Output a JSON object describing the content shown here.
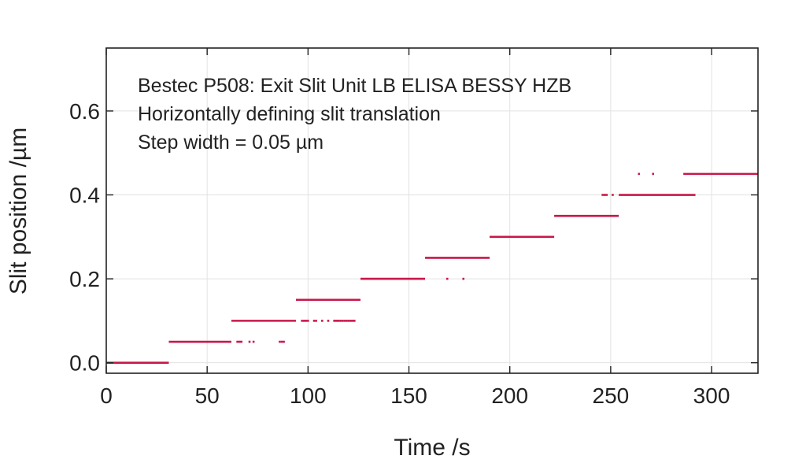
{
  "chart_data": {
    "type": "scatter",
    "title": "",
    "xlabel": "Time /s",
    "ylabel": "Slit position /µm",
    "xlim": [
      0,
      323
    ],
    "ylim": [
      -0.025,
      0.75
    ],
    "xticks": [
      0,
      50,
      100,
      150,
      200,
      250,
      300
    ],
    "yticks": [
      0.0,
      0.2,
      0.4,
      0.6
    ],
    "ytick_labels": [
      "0.0",
      "0.2",
      "0.4",
      "0.6"
    ],
    "grid": true,
    "series_color": "#c8174a",
    "annotations": [
      "Bestec P508: Exit Slit Unit LB ELISA BESSY HZB",
      "Horizontally defining slit translation",
      "Step width = 0.05 µm"
    ],
    "segments": [
      {
        "y": 0.0,
        "x_start": 0,
        "x_end": 31
      },
      {
        "y": 0.05,
        "x_start": 31,
        "x_end": 62
      },
      {
        "y": 0.1,
        "x_start": 62,
        "x_end": 94
      },
      {
        "y": 0.15,
        "x_start": 94,
        "x_end": 126
      },
      {
        "y": 0.2,
        "x_start": 126,
        "x_end": 158
      },
      {
        "y": 0.25,
        "x_start": 158,
        "x_end": 190
      },
      {
        "y": 0.3,
        "x_start": 190,
        "x_end": 222
      },
      {
        "y": 0.35,
        "x_start": 222,
        "x_end": 254
      },
      {
        "y": 0.4,
        "x_start": 254,
        "x_end": 292
      },
      {
        "y": 0.45,
        "x_start": 286,
        "x_end": 323
      }
    ],
    "outlier_points": [
      {
        "x": 65,
        "y": 0.05
      },
      {
        "x": 66,
        "y": 0.05
      },
      {
        "x": 67,
        "y": 0.05
      },
      {
        "x": 71,
        "y": 0.05
      },
      {
        "x": 73,
        "y": 0.05
      },
      {
        "x": 86,
        "y": 0.05
      },
      {
        "x": 87,
        "y": 0.05
      },
      {
        "x": 88,
        "y": 0.05
      },
      {
        "x": 97,
        "y": 0.1
      },
      {
        "x": 98,
        "y": 0.1
      },
      {
        "x": 99,
        "y": 0.1
      },
      {
        "x": 100,
        "y": 0.1
      },
      {
        "x": 103,
        "y": 0.1
      },
      {
        "x": 104,
        "y": 0.1
      },
      {
        "x": 107,
        "y": 0.1
      },
      {
        "x": 110,
        "y": 0.1
      },
      {
        "x": 113,
        "y": 0.1
      },
      {
        "x": 114,
        "y": 0.1
      },
      {
        "x": 115,
        "y": 0.1
      },
      {
        "x": 116,
        "y": 0.1
      },
      {
        "x": 117,
        "y": 0.1
      },
      {
        "x": 118,
        "y": 0.1
      },
      {
        "x": 119,
        "y": 0.1
      },
      {
        "x": 120,
        "y": 0.1
      },
      {
        "x": 121,
        "y": 0.1
      },
      {
        "x": 122,
        "y": 0.1
      },
      {
        "x": 123,
        "y": 0.1
      },
      {
        "x": 169,
        "y": 0.2
      },
      {
        "x": 177,
        "y": 0.2
      },
      {
        "x": 246,
        "y": 0.4
      },
      {
        "x": 247,
        "y": 0.4
      },
      {
        "x": 248,
        "y": 0.4
      },
      {
        "x": 251,
        "y": 0.4
      },
      {
        "x": 264,
        "y": 0.45
      },
      {
        "x": 271,
        "y": 0.45
      }
    ]
  }
}
